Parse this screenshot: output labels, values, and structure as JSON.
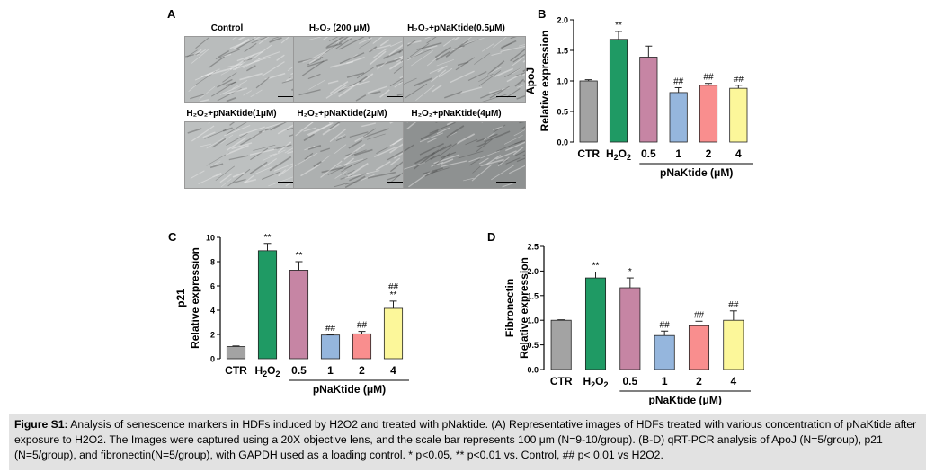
{
  "panel_a": {
    "label": "A",
    "images": [
      {
        "title": "Control",
        "tone": "#b9bcbc"
      },
      {
        "title": "H₂O₂ (200 μM)",
        "tone": "#b4b7b7"
      },
      {
        "title": "H₂O₂+pNaKtide(0.5μM)",
        "tone": "#b0b3b3"
      },
      {
        "title": "H₂O₂+pNaKtide(1μM)",
        "tone": "#bdc0c0"
      },
      {
        "title": "H₂O₂+pNaKtide(2μM)",
        "tone": "#adb0b0"
      },
      {
        "title": "H₂O₂+pNaKtide(4μM)",
        "tone": "#8e9191"
      }
    ]
  },
  "chart_data": [
    {
      "panel": "B",
      "type": "bar",
      "ylabel_top": "ApoJ",
      "ylabel": "Relative expression",
      "categories": [
        "CTR",
        "H2O2",
        "0.5",
        "1",
        "2",
        "4"
      ],
      "values": [
        1.0,
        1.68,
        1.39,
        0.81,
        0.93,
        0.88
      ],
      "errors": [
        0.02,
        0.13,
        0.18,
        0.08,
        0.03,
        0.05
      ],
      "sig_top": [
        "",
        "**",
        "",
        "##",
        "##",
        "##"
      ],
      "sig_bottom": [
        "",
        "",
        "",
        "",
        "",
        ""
      ],
      "ylim": [
        0,
        2.0
      ],
      "yticks": [
        "0.0",
        "0.5",
        "1.0",
        "1.5",
        "2.0"
      ],
      "group_label": "pNaKtide (μM)"
    },
    {
      "panel": "C",
      "type": "bar",
      "ylabel_top": "p21",
      "ylabel": "Relative expression",
      "categories": [
        "CTR",
        "H2O2",
        "0.5",
        "1",
        "2",
        "4"
      ],
      "values": [
        1.0,
        8.9,
        7.3,
        1.95,
        2.05,
        4.15
      ],
      "errors": [
        0.05,
        0.6,
        0.7,
        0.05,
        0.2,
        0.6
      ],
      "sig_top": [
        "",
        "**",
        "**",
        "##",
        "##",
        "##"
      ],
      "sig_bottom": [
        "",
        "",
        "",
        "",
        "",
        "**"
      ],
      "ylim": [
        0,
        10
      ],
      "yticks": [
        "0",
        "2",
        "4",
        "6",
        "8",
        "10"
      ],
      "group_label": "pNaKtide (μM)"
    },
    {
      "panel": "D",
      "type": "bar",
      "ylabel_top": "Fibronectin",
      "ylabel": "Relative expression",
      "categories": [
        "CTR",
        "H2O2",
        "0.5",
        "1",
        "2",
        "4"
      ],
      "values": [
        1.0,
        1.86,
        1.66,
        0.69,
        0.89,
        1.0
      ],
      "errors": [
        0.01,
        0.12,
        0.2,
        0.09,
        0.09,
        0.19
      ],
      "sig_top": [
        "",
        "**",
        "*",
        "##",
        "##",
        "##"
      ],
      "sig_bottom": [
        "",
        "",
        "",
        "",
        "",
        ""
      ],
      "ylim": [
        0,
        2.5
      ],
      "yticks": [
        "0.0",
        "0.5",
        "1.0",
        "1.5",
        "2.0",
        "2.5"
      ],
      "group_label": "pNaKtide (μM)"
    }
  ],
  "colors": {
    "bars": [
      "#a3a3a3",
      "#1f9a64",
      "#c685a4",
      "#95b6dd",
      "#f98e8e",
      "#fcf79a"
    ]
  },
  "caption": {
    "heading": "Figure S1:",
    "text": " Analysis of senescence markers in HDFs induced by H2O2 and treated with pNaktide. (A) Representative images of HDFs treated with various concentration of pNaKtide after exposure to H2O2. The Images were captured using a 20X objective lens, and the scale bar represents 100 μm (N=9-10/group). (B-D) qRT-PCR analysis of ApoJ (N=5/group), p21 (N=5/group), and fibronectin(N=5/group), with GAPDH used as a loading control. * p<0.05, ** p<0.01 vs. Control, ## p< 0.01 vs H2O2."
  }
}
